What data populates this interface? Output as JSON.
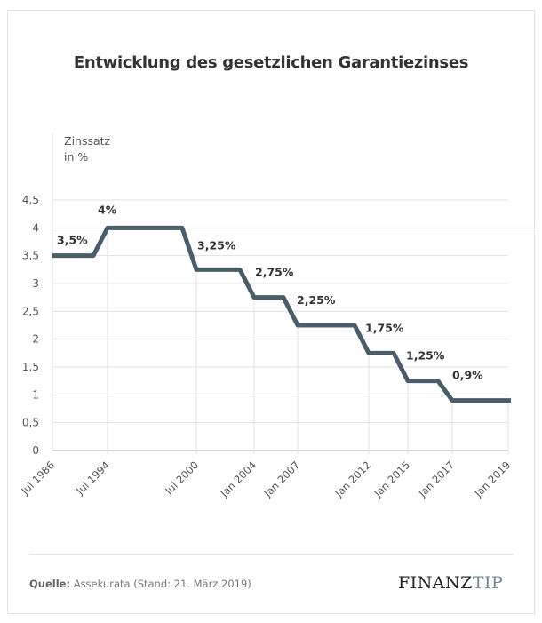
{
  "title": "Entwicklung des gesetzlichen Garantiezinses",
  "source_label": "Quelle:",
  "source_text": "Assekurata (Stand: 21. März 2019)",
  "logo": {
    "part1": "FINANZ",
    "part2": "TIP"
  },
  "colors": {
    "line": "#4a5e6a",
    "grid": "#e0e0e0",
    "logo_accent": "#6f8797"
  },
  "chart_data": {
    "type": "line",
    "step": true,
    "title": "Entwicklung des gesetzlichen Garantiezinses",
    "ylabel_line1": "Zinssatz",
    "ylabel_line2": "in %",
    "xlabel": "",
    "ylim": [
      0,
      4.5
    ],
    "yticks": [
      "0",
      "0,5",
      "1",
      "1,5",
      "2",
      "2,5",
      "3",
      "3,5",
      "4",
      "4,5"
    ],
    "ytick_values": [
      0,
      0.5,
      1,
      1.5,
      2,
      2.5,
      3,
      3.5,
      4,
      4.5
    ],
    "categories": [
      "Jul 1986",
      "Jul 1994",
      "Jul 2000",
      "Jan 2004",
      "Jan 2007",
      "Jan 2012",
      "Jan 2015",
      "Jan 2017",
      "Jan 2019"
    ],
    "values": [
      3.5,
      4,
      3.25,
      2.75,
      2.25,
      1.75,
      1.25,
      0.9,
      0.9
    ],
    "data_labels": [
      "3,5%",
      "4%",
      "3,25%",
      "2,75%",
      "2,25%",
      "1,75%",
      "1,25%",
      "0,9%",
      ""
    ],
    "grid": true
  }
}
